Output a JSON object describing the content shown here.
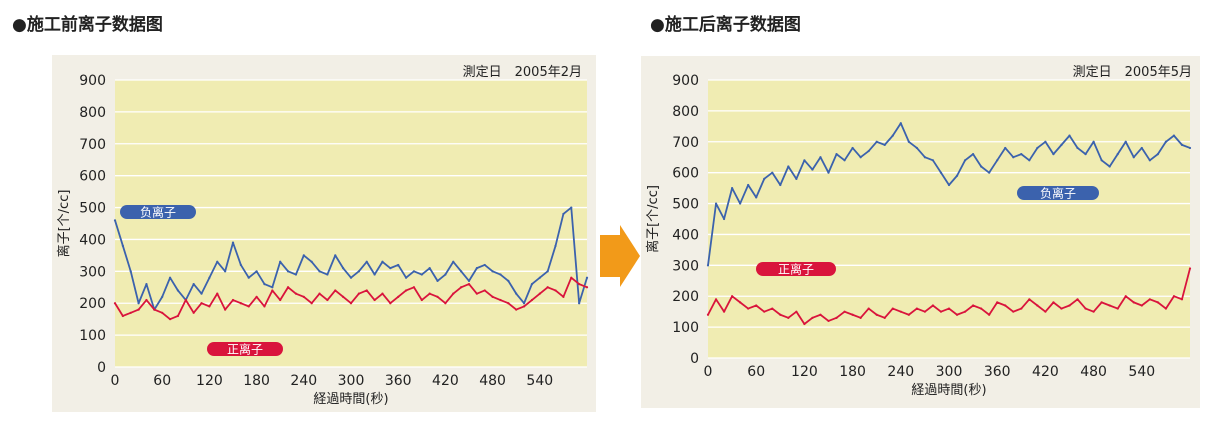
{
  "headings": {
    "left": "●施工前离子数据图",
    "right": "●施工后离子数据图"
  },
  "colors": {
    "panel_bg": "#f2efe6",
    "plot_bg": "#f0ecb2",
    "negative_ion": "#3b62ad",
    "positive_ion": "#d9143c",
    "arrow": "#f29a19"
  },
  "transition_arrow_icon": "arrow-right-icon",
  "chart_data": [
    {
      "type": "line",
      "measured_date": "測定日　2005年2月",
      "xlabel": "経過時間(秒)",
      "ylabel": "离子[个/cc]",
      "xlim": [
        0,
        600
      ],
      "ylim": [
        0,
        900
      ],
      "xticks": [
        "0",
        "60",
        "120",
        "180",
        "240",
        "300",
        "360",
        "420",
        "480",
        "540"
      ],
      "yticks": [
        "0",
        "100",
        "200",
        "300",
        "400",
        "500",
        "600",
        "700",
        "800",
        "900"
      ],
      "grid": "horizontal",
      "x": [
        0,
        10,
        20,
        30,
        40,
        50,
        60,
        70,
        80,
        90,
        100,
        110,
        120,
        130,
        140,
        150,
        160,
        170,
        180,
        190,
        200,
        210,
        220,
        230,
        240,
        250,
        260,
        270,
        280,
        290,
        300,
        310,
        320,
        330,
        340,
        350,
        360,
        370,
        380,
        390,
        400,
        410,
        420,
        430,
        440,
        450,
        460,
        470,
        480,
        490,
        500,
        510,
        520,
        530,
        540,
        550,
        560,
        570,
        580,
        590,
        600
      ],
      "series": [
        {
          "name": "负离子",
          "label": "负离子",
          "color": "#3b62ad",
          "values": [
            460,
            380,
            300,
            200,
            260,
            180,
            220,
            280,
            240,
            210,
            260,
            230,
            280,
            330,
            300,
            390,
            320,
            280,
            300,
            260,
            250,
            330,
            300,
            290,
            350,
            330,
            300,
            290,
            350,
            310,
            280,
            300,
            330,
            290,
            330,
            310,
            320,
            280,
            300,
            290,
            310,
            270,
            290,
            330,
            300,
            270,
            310,
            320,
            300,
            290,
            270,
            230,
            200,
            260,
            280,
            300,
            380,
            480,
            500,
            200,
            280
          ]
        },
        {
          "name": "正离子",
          "label": "正离子",
          "color": "#d9143c",
          "values": [
            200,
            160,
            170,
            180,
            210,
            180,
            170,
            150,
            160,
            210,
            170,
            200,
            190,
            230,
            180,
            210,
            200,
            190,
            220,
            190,
            240,
            210,
            250,
            230,
            220,
            200,
            230,
            210,
            240,
            220,
            200,
            230,
            240,
            210,
            230,
            200,
            220,
            240,
            250,
            210,
            230,
            220,
            200,
            230,
            250,
            260,
            230,
            240,
            220,
            210,
            200,
            180,
            190,
            210,
            230,
            250,
            240,
            220,
            280,
            260,
            250
          ]
        }
      ]
    },
    {
      "type": "line",
      "measured_date": "測定日　2005年5月",
      "xlabel": "経過時間(秒)",
      "ylabel": "离子[个/cc]",
      "xlim": [
        0,
        600
      ],
      "ylim": [
        0,
        900
      ],
      "xticks": [
        "0",
        "60",
        "120",
        "180",
        "240",
        "300",
        "360",
        "420",
        "480",
        "540"
      ],
      "yticks": [
        "0",
        "100",
        "200",
        "300",
        "400",
        "500",
        "600",
        "700",
        "800",
        "900"
      ],
      "grid": "horizontal",
      "x": [
        0,
        10,
        20,
        30,
        40,
        50,
        60,
        70,
        80,
        90,
        100,
        110,
        120,
        130,
        140,
        150,
        160,
        170,
        180,
        190,
        200,
        210,
        220,
        230,
        240,
        250,
        260,
        270,
        280,
        290,
        300,
        310,
        320,
        330,
        340,
        350,
        360,
        370,
        380,
        390,
        400,
        410,
        420,
        430,
        440,
        450,
        460,
        470,
        480,
        490,
        500,
        510,
        520,
        530,
        540,
        550,
        560,
        570,
        580,
        590,
        600
      ],
      "series": [
        {
          "name": "负离子",
          "label": "负离子",
          "color": "#3b62ad",
          "values": [
            300,
            500,
            450,
            550,
            500,
            560,
            520,
            580,
            600,
            560,
            620,
            580,
            640,
            610,
            650,
            600,
            660,
            640,
            680,
            650,
            670,
            700,
            690,
            720,
            760,
            700,
            680,
            650,
            640,
            600,
            560,
            590,
            640,
            660,
            620,
            600,
            640,
            680,
            650,
            660,
            640,
            680,
            700,
            660,
            690,
            720,
            680,
            660,
            700,
            640,
            620,
            660,
            700,
            650,
            680,
            640,
            660,
            700,
            720,
            690,
            680
          ]
        },
        {
          "name": "正离子",
          "label": "正离子",
          "color": "#d9143c",
          "values": [
            140,
            190,
            150,
            200,
            180,
            160,
            170,
            150,
            160,
            140,
            130,
            150,
            110,
            130,
            140,
            120,
            130,
            150,
            140,
            130,
            160,
            140,
            130,
            160,
            150,
            140,
            160,
            150,
            170,
            150,
            160,
            140,
            150,
            170,
            160,
            140,
            180,
            170,
            150,
            160,
            190,
            170,
            150,
            180,
            160,
            170,
            190,
            160,
            150,
            180,
            170,
            160,
            200,
            180,
            170,
            190,
            180,
            160,
            200,
            190,
            290
          ]
        }
      ]
    }
  ]
}
